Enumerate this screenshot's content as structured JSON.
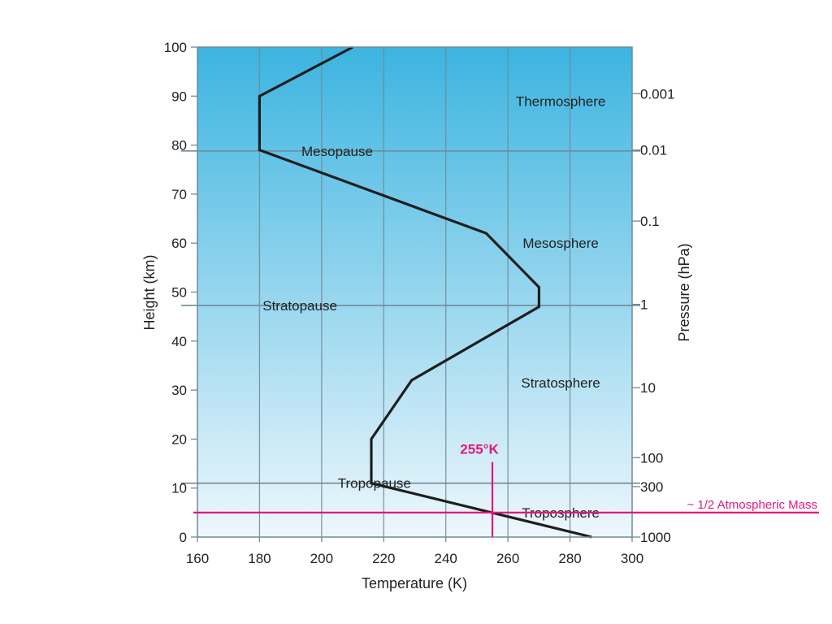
{
  "chart_data": {
    "type": "line",
    "xlabel": "Temperature (K)",
    "ylabel": "Height (km)",
    "y2label": "Pressure (hPa)",
    "xlim": [
      160,
      300
    ],
    "ylim": [
      0,
      100
    ],
    "x_ticks": [
      160,
      180,
      200,
      220,
      240,
      260,
      280,
      300
    ],
    "y_ticks": [
      0,
      10,
      20,
      30,
      40,
      50,
      60,
      70,
      80,
      90,
      100
    ],
    "pressure_ticks": [
      {
        "label": "0.001",
        "height_km": 90.5
      },
      {
        "label": "0.01",
        "height_km": 79
      },
      {
        "label": "0.1",
        "height_km": 64.5
      },
      {
        "label": "1",
        "height_km": 47.5
      },
      {
        "label": "10",
        "height_km": 30.5
      },
      {
        "label": "100",
        "height_km": 16.2
      },
      {
        "label": "300",
        "height_km": 10.3
      },
      {
        "label": "1000",
        "height_km": 0
      }
    ],
    "grid": true,
    "series": [
      {
        "values": [
          {
            "x": 287,
            "y": 0
          },
          {
            "x": 216,
            "y": 11
          },
          {
            "x": 216,
            "y": 20
          },
          {
            "x": 229,
            "y": 32
          },
          {
            "x": 270,
            "y": 47
          },
          {
            "x": 270,
            "y": 51
          },
          {
            "x": 253,
            "y": 62
          },
          {
            "x": 180,
            "y": 79
          },
          {
            "x": 180,
            "y": 90
          },
          {
            "x": 210,
            "y": 100
          }
        ]
      }
    ],
    "boundaries": [
      {
        "name": "Tropopause",
        "height_km": 11,
        "label_x": 217
      },
      {
        "name": "Stratopause",
        "height_km": 47.3,
        "label_x": 193
      },
      {
        "name": "Mesopause",
        "height_km": 78.8,
        "label_x": 205
      }
    ],
    "regions": [
      {
        "name": "Thermosphere",
        "label_x": 277,
        "label_y": 89
      },
      {
        "name": "Mesosphere",
        "label_x": 277,
        "label_y": 60
      },
      {
        "name": "Stratosphere",
        "label_x": 277,
        "label_y": 31.5
      },
      {
        "name": "Troposphere",
        "label_x": 277,
        "label_y": 5
      }
    ],
    "annotations": {
      "mass_line": {
        "text": "~ 1/2 Atmospheric Mass",
        "height_km": 5
      },
      "temp_line": {
        "text": "255°K",
        "temperature_k": 255,
        "top_km": 15.3
      }
    },
    "colors": {
      "background_top": "#3cb4e0",
      "background_bottom": "#eef7fc",
      "line": "#1e1e1e",
      "grid": "#6f8a96",
      "annotation": "#e0197d"
    }
  }
}
